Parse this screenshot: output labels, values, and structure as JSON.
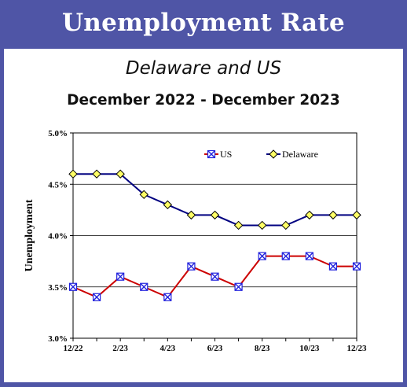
{
  "header": {
    "title": "Unemployment Rate"
  },
  "subtitle": "Delaware and US",
  "period": "December 2022 - December 2023",
  "chart_data": {
    "type": "line",
    "title": "",
    "xlabel": "",
    "ylabel": "Unemployment",
    "x": [
      "12/22",
      "1/23",
      "2/23",
      "3/23",
      "4/23",
      "5/23",
      "6/23",
      "7/23",
      "8/23",
      "9/23",
      "10/23",
      "11/23",
      "12/23"
    ],
    "x_tick_labels": [
      "12/22",
      "2/23",
      "4/23",
      "6/23",
      "8/23",
      "10/23",
      "12/23"
    ],
    "y_tick_labels": [
      "5.0%",
      "4.5%",
      "4.0%",
      "3.5%",
      "3.0%"
    ],
    "y_ticks": [
      5.0,
      4.5,
      4.0,
      3.5,
      3.0
    ],
    "ylim": [
      3.0,
      5.0
    ],
    "y_unit": "%",
    "grid": "horizontal",
    "legend_position": "top",
    "series": [
      {
        "name": "US",
        "color": "#cc0000",
        "marker": "x-square",
        "marker_color": "#2222dd",
        "values": [
          3.5,
          3.4,
          3.6,
          3.5,
          3.4,
          3.7,
          3.6,
          3.5,
          3.8,
          3.8,
          3.8,
          3.7,
          3.7
        ]
      },
      {
        "name": "Delaware",
        "color": "#000080",
        "marker": "diamond",
        "marker_color": "#ffff66",
        "values": [
          4.6,
          4.6,
          4.6,
          4.4,
          4.3,
          4.2,
          4.2,
          4.1,
          4.1,
          4.1,
          4.2,
          4.2,
          4.2
        ]
      }
    ]
  }
}
